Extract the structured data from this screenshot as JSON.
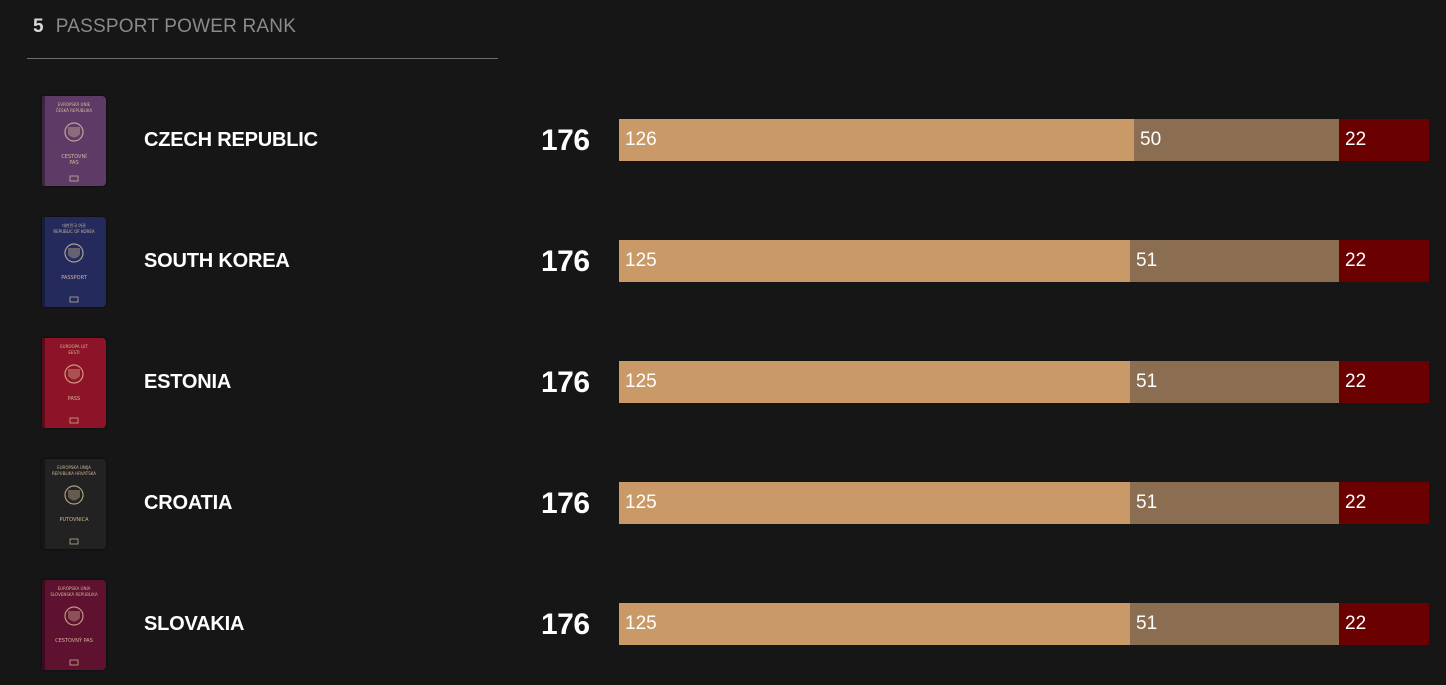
{
  "header": {
    "rank": "5",
    "title": "PASSPORT POWER RANK"
  },
  "colors": {
    "background": "#161616",
    "visa_free": "#c99968",
    "visa_on_arrival": "#8b6e52",
    "visa_required": "#6b0000",
    "text": "#ffffff",
    "muted_text": "#8a8a8a"
  },
  "rows": [
    {
      "country": "CZECH REPUBLIC",
      "total": "176",
      "segments": [
        126,
        50,
        22
      ],
      "passport": {
        "icon": "passport-czech-icon",
        "cover": "#5e3a66",
        "text_lines": [
          "EVROPSKÁ UNIE",
          "ČESKÁ REPUBLIKA",
          "CESTOVNÍ",
          "PAS"
        ]
      }
    },
    {
      "country": "SOUTH KOREA",
      "total": "176",
      "segments": [
        125,
        51,
        22
      ],
      "passport": {
        "icon": "passport-south-korea-icon",
        "cover": "#242b5c",
        "text_lines": [
          "대한민국 여권",
          "REPUBLIC OF KOREA",
          "PASSPORT"
        ]
      }
    },
    {
      "country": "ESTONIA",
      "total": "176",
      "segments": [
        125,
        51,
        22
      ],
      "passport": {
        "icon": "passport-estonia-icon",
        "cover": "#8c1328",
        "text_lines": [
          "EUROOPA LIIT",
          "EESTI",
          "PASS"
        ]
      }
    },
    {
      "country": "CROATIA",
      "total": "176",
      "segments": [
        125,
        51,
        22
      ],
      "passport": {
        "icon": "passport-croatia-icon",
        "cover": "#222222",
        "text_lines": [
          "EUROPSKA UNIJA",
          "REPUBLIKA HRVATSKA",
          "PUTOVNICA"
        ]
      }
    },
    {
      "country": "SLOVAKIA",
      "total": "176",
      "segments": [
        125,
        51,
        22
      ],
      "passport": {
        "icon": "passport-slovakia-icon",
        "cover": "#5e1230",
        "text_lines": [
          "EURÓPSKA ÚNIA",
          "SLOVENSKÁ REPUBLIKA",
          "CESTOVNÝ PAS"
        ]
      }
    }
  ]
}
